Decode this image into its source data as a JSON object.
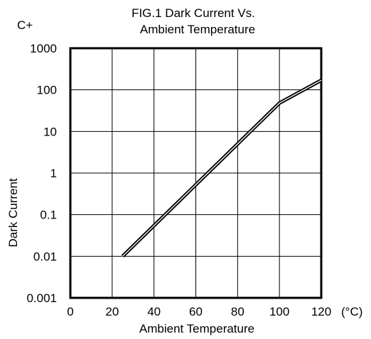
{
  "chart_data": {
    "type": "line",
    "title_line1": "FIG.1 Dark Current Vs.",
    "title_line2": "Ambient Temperature",
    "corner_label": "C+",
    "xlabel": "Ambient Temperature",
    "ylabel": "Dark Current",
    "x_unit": "(°C)",
    "xlim": [
      0,
      120
    ],
    "ylim": [
      0.001,
      1000
    ],
    "y_scale": "log",
    "grid": true,
    "x_ticks": [
      {
        "value": 0,
        "label": "0"
      },
      {
        "value": 20,
        "label": "20"
      },
      {
        "value": 40,
        "label": "40"
      },
      {
        "value": 60,
        "label": "60"
      },
      {
        "value": 80,
        "label": "80"
      },
      {
        "value": 100,
        "label": "100"
      },
      {
        "value": 120,
        "label": "120"
      }
    ],
    "y_ticks": [
      {
        "value": 0.001,
        "label": "0.001"
      },
      {
        "value": 0.01,
        "label": "0.01"
      },
      {
        "value": 0.1,
        "label": "0.1"
      },
      {
        "value": 1,
        "label": "1"
      },
      {
        "value": 10,
        "label": "10"
      },
      {
        "value": 100,
        "label": "100"
      },
      {
        "value": 1000,
        "label": "1000"
      }
    ],
    "series": [
      {
        "x": [
          25,
          100,
          120
        ],
        "y": [
          0.01,
          48,
          170
        ]
      }
    ]
  }
}
